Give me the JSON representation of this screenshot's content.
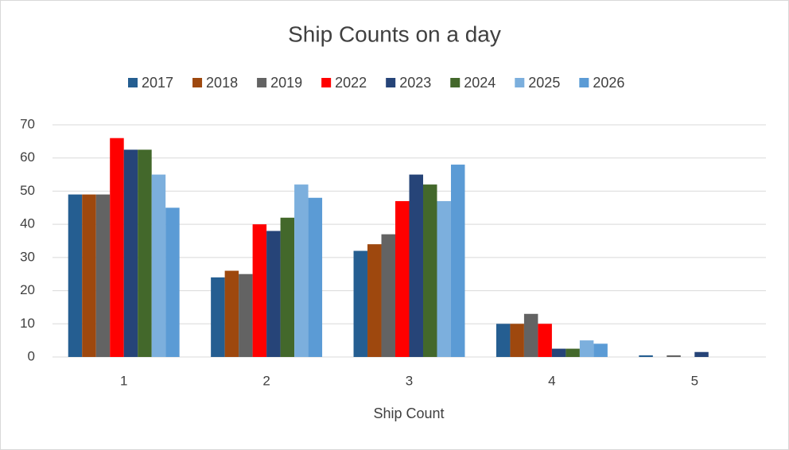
{
  "chart_data": {
    "type": "bar",
    "title": "Ship Counts on a day",
    "x_label": "Ship Count",
    "categories": [
      "1",
      "2",
      "3",
      "4",
      "5"
    ],
    "series": [
      {
        "name": "2017",
        "color": "#255e91",
        "values": [
          49,
          24,
          32,
          10,
          0.5
        ]
      },
      {
        "name": "2018",
        "color": "#9e480e",
        "values": [
          49,
          26,
          34,
          10,
          0
        ]
      },
      {
        "name": "2019",
        "color": "#636363",
        "values": [
          49,
          25,
          37,
          13,
          0.5
        ]
      },
      {
        "name": "2022",
        "color": "#ff0000",
        "values": [
          66,
          40,
          47,
          10,
          0
        ]
      },
      {
        "name": "2023",
        "color": "#264478",
        "values": [
          62.5,
          38,
          55,
          2.5,
          1.5
        ]
      },
      {
        "name": "2024",
        "color": "#43682b",
        "values": [
          62.5,
          42,
          52,
          2.5,
          0
        ]
      },
      {
        "name": "2025",
        "color": "#7cafdd",
        "values": [
          55,
          52,
          47,
          5,
          0
        ]
      },
      {
        "name": "2026",
        "color": "#5b9bd5",
        "values": [
          45,
          48,
          58,
          4,
          0
        ]
      }
    ],
    "ylim": [
      0,
      70
    ],
    "yticks": [
      0,
      10,
      20,
      30,
      40,
      50,
      60,
      70
    ],
    "grid": true,
    "legend": "top"
  }
}
